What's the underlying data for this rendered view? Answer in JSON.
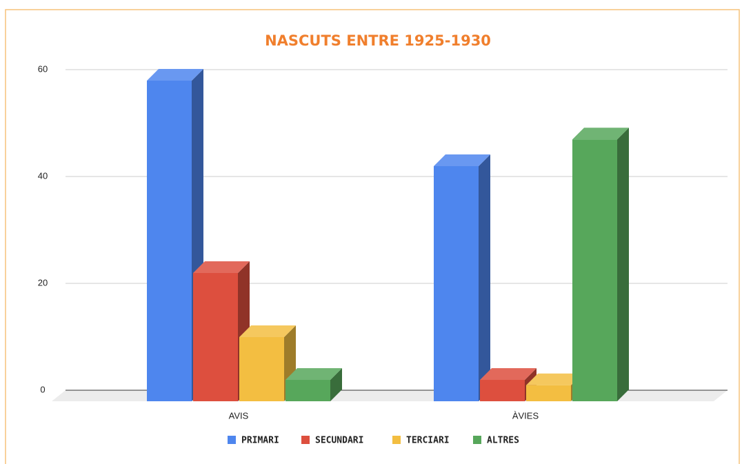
{
  "chart_data": {
    "type": "bar3d",
    "title": "NASCUTS ENTRE 1925-1930",
    "categories": [
      "AVIS",
      "ÀVIES"
    ],
    "series": [
      {
        "name": "PRIMARI",
        "color": "#4e86ee",
        "values": [
          60,
          44
        ]
      },
      {
        "name": "SECUNDARI",
        "color": "#dd4f3e",
        "values": [
          24,
          4
        ]
      },
      {
        "name": "TERCIARI",
        "color": "#f3be41",
        "values": [
          12,
          3
        ]
      },
      {
        "name": "ALTRES",
        "color": "#57a75b",
        "values": [
          4,
          49
        ]
      }
    ],
    "ylim": [
      0,
      60
    ],
    "yticks": [
      0,
      20,
      40,
      60
    ],
    "grid": true,
    "legend": "bottom"
  }
}
